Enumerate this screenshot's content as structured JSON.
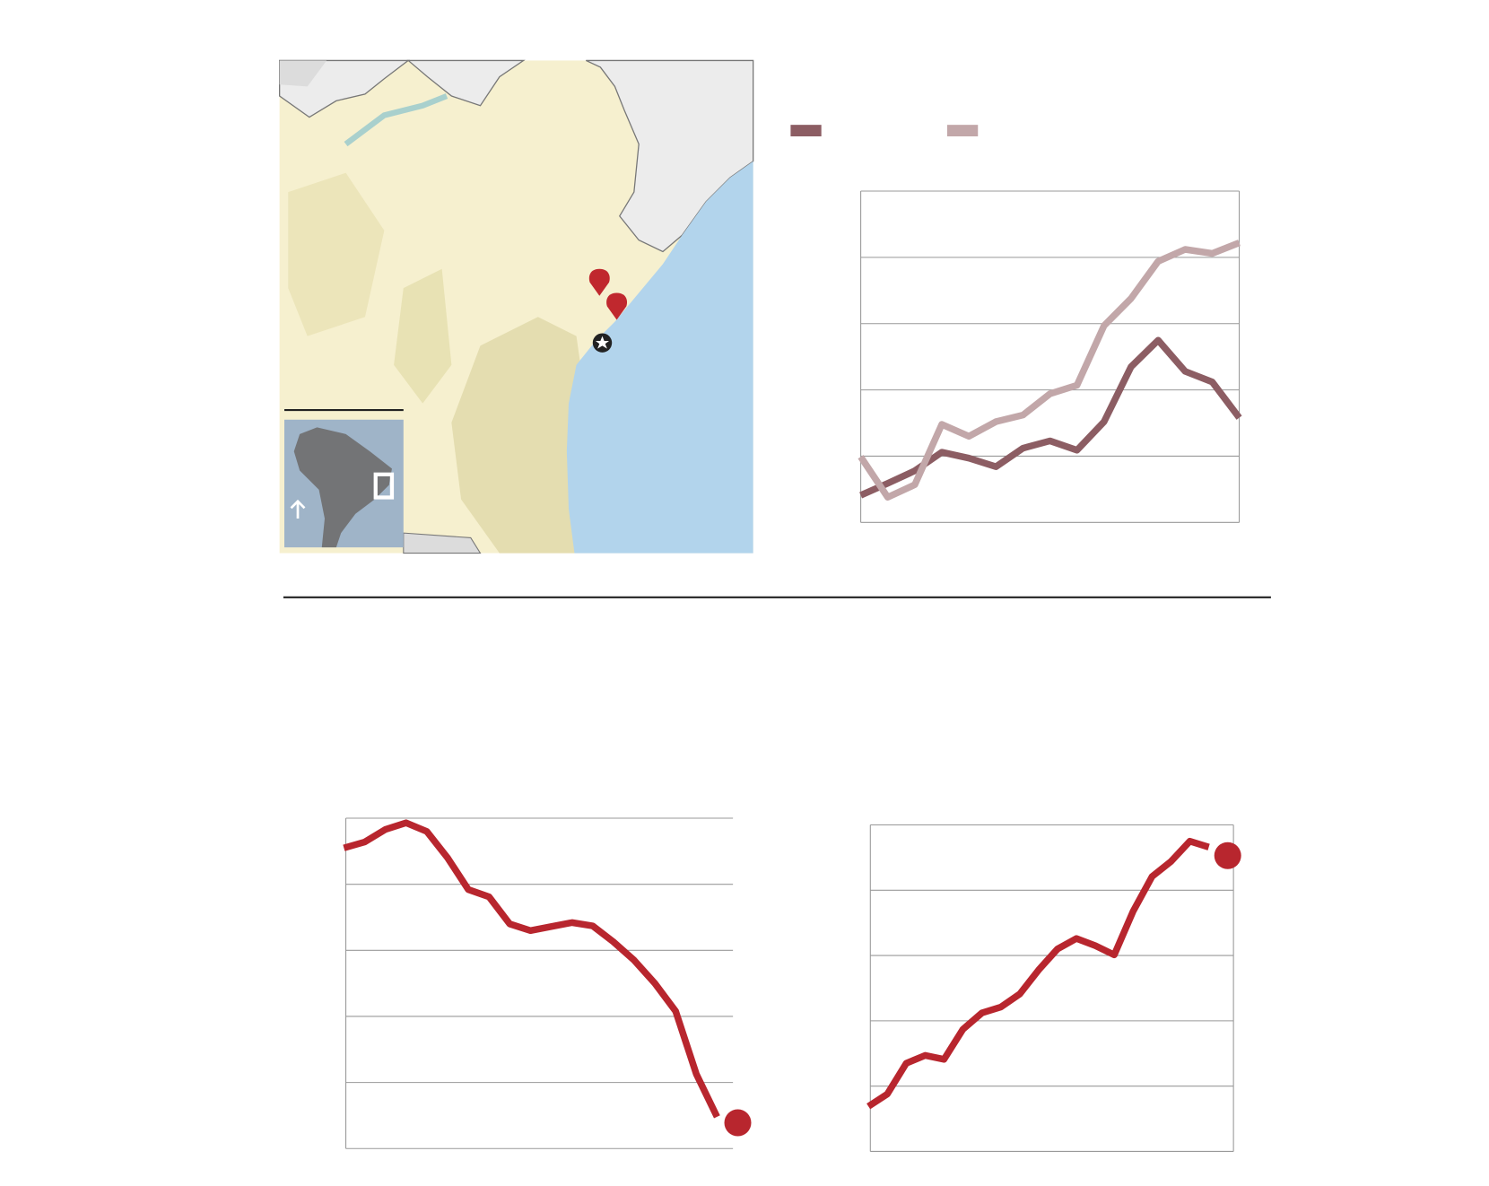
{
  "chart_data": [
    {
      "type": "line",
      "categories": [
        null,
        null,
        null,
        null,
        null,
        null,
        null,
        null,
        null,
        null,
        null,
        null,
        null,
        null,
        null
      ],
      "series": [
        {
          "color": "#8c5d63",
          "values": [
            0.41,
            0.59,
            0.78,
            1.06,
            0.97,
            0.84,
            1.12,
            1.23,
            1.09,
            1.52,
            2.35,
            2.75,
            2.28,
            2.12,
            1.58
          ]
        },
        {
          "color": "#c2a7a9",
          "values": [
            0.99,
            0.38,
            0.57,
            1.48,
            1.3,
            1.52,
            1.62,
            1.94,
            2.07,
            2.97,
            3.38,
            3.94,
            4.12,
            4.06,
            4.22
          ]
        }
      ],
      "ylim": [
        0,
        5
      ],
      "yticks": [
        0,
        1,
        2,
        3,
        4,
        5
      ],
      "grid": true,
      "legend": "top"
    },
    {
      "type": "line",
      "categories": [
        null,
        null,
        null,
        null,
        null,
        null,
        null,
        null,
        null,
        null,
        null,
        null,
        null,
        null,
        null,
        null,
        null,
        null,
        null,
        null
      ],
      "series": [
        {
          "color": "#b8262e",
          "values": [
            4.55,
            4.64,
            4.83,
            4.93,
            4.8,
            4.4,
            3.92,
            3.81,
            3.4,
            3.3,
            3.36,
            3.42,
            3.37,
            3.13,
            2.85,
            2.5,
            2.08,
            1.13,
            0.48,
            null
          ]
        },
        {
          "color": "#b8262e",
          "marker": "circle",
          "values": [
            null,
            null,
            null,
            null,
            null,
            null,
            null,
            null,
            null,
            null,
            null,
            null,
            null,
            null,
            null,
            null,
            null,
            null,
            null,
            0.39
          ]
        }
      ],
      "ylim": [
        0,
        5
      ],
      "yticks": [
        0,
        1,
        2,
        3,
        4,
        5
      ],
      "grid": true
    },
    {
      "type": "line",
      "categories": [
        null,
        null,
        null,
        null,
        null,
        null,
        null,
        null,
        null,
        null,
        null,
        null,
        null,
        null,
        null,
        null,
        null,
        null,
        null,
        null
      ],
      "series": [
        {
          "color": "#b8262e",
          "values": [
            0.69,
            0.88,
            1.35,
            1.47,
            1.41,
            1.87,
            2.12,
            2.21,
            2.41,
            2.78,
            3.1,
            3.26,
            3.15,
            3.01,
            3.68,
            4.21,
            4.44,
            4.75,
            4.66,
            null
          ]
        },
        {
          "color": "#b8262e",
          "marker": "circle",
          "values": [
            null,
            null,
            null,
            null,
            null,
            null,
            null,
            null,
            null,
            null,
            null,
            null,
            null,
            null,
            null,
            null,
            null,
            null,
            null,
            4.53
          ]
        }
      ],
      "ylim": [
        0,
        5
      ],
      "yticks": [
        0,
        1,
        2,
        3,
        4,
        5
      ],
      "grid": true
    }
  ]
}
